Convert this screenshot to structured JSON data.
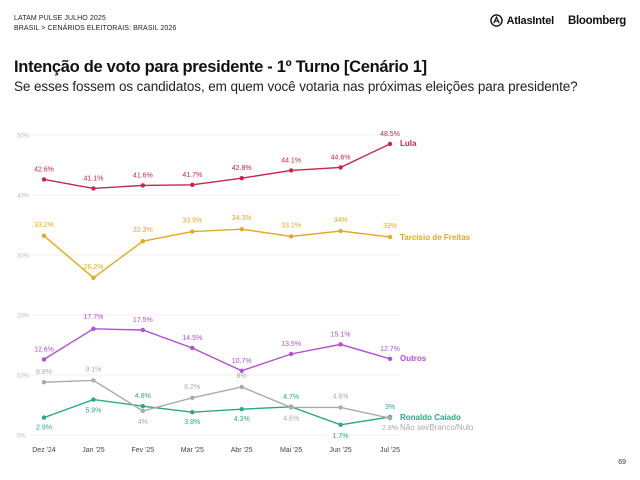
{
  "header": {
    "line1": "LATAM PULSE JULHO 2025",
    "line2": "BRASIL > CENÁRIOS ELEITORAIS: BRASIL 2026",
    "atlas_logo": "AtlasIntel",
    "bloomberg_logo": "Bloomberg",
    "icons": {
      "atlas_mark": "atlas-mark-icon"
    }
  },
  "title": "Intenção de voto para presidente - 1º Turno [Cenário 1]",
  "subtitle": "Se esses fossem os candidatos, em quem você votaria nas próximas eleições para presidente?",
  "page_number": "69",
  "chart_data": {
    "type": "line",
    "title": "",
    "xlabel": "",
    "ylabel": "",
    "x": [
      "Dez '24",
      "Jan '25",
      "Fev '25",
      "Mar '25",
      "Abr '25",
      "Mai '25",
      "Jun '25",
      "Jul '25"
    ],
    "yticks": [
      "0%",
      "10%",
      "20%",
      "30%",
      "40%",
      "50%"
    ],
    "ylim": [
      0,
      50
    ],
    "grid": true,
    "legend": "right-end labels",
    "series": [
      {
        "name": "Lula",
        "color": "#c7264a",
        "values": [
          42.6,
          41.1,
          41.6,
          41.7,
          42.8,
          44.1,
          44.6,
          48.5
        ],
        "labels": [
          "42.6%",
          "41.1%",
          "41.6%",
          "41.7%",
          "42.8%",
          "44.1%",
          "44.6%",
          "48.5%"
        ]
      },
      {
        "name": "Tarcísio de Freitas",
        "color": "#e0aa22",
        "values": [
          33.2,
          26.2,
          32.3,
          33.9,
          34.3,
          33.1,
          34,
          33
        ],
        "labels": [
          "33.2%",
          "26.2%",
          "32.3%",
          "33.9%",
          "34.3%",
          "33.1%",
          "34%",
          "33%"
        ]
      },
      {
        "name": "Outros",
        "color": "#b34fd6",
        "values": [
          12.6,
          17.7,
          17.5,
          14.5,
          10.7,
          13.5,
          15.1,
          12.7
        ],
        "labels": [
          "12.6%",
          "17.7%",
          "17.5%",
          "14.5%",
          "10.7%",
          "13.5%",
          "15.1%",
          "12.7%"
        ]
      },
      {
        "name": "Ronaldo Caiado",
        "color": "#2aa887",
        "values": [
          2.9,
          5.9,
          4.8,
          3.8,
          4.3,
          4.7,
          1.7,
          3
        ],
        "labels": [
          "2.9%",
          "5.9%",
          "4.8%",
          "3.8%",
          "4.3%",
          "4.7%",
          "1.7%",
          "3%"
        ]
      },
      {
        "name": "Não sei/Branco/Nulo",
        "color": "#aaaaaa",
        "values": [
          8.8,
          9.1,
          4,
          6.2,
          8,
          4.6,
          4.6,
          2.8
        ],
        "labels": [
          "8.8%",
          "9.1%",
          "4%",
          "6.2%",
          "8%",
          "4.6%",
          "4.6%",
          "2.8%"
        ]
      }
    ]
  }
}
